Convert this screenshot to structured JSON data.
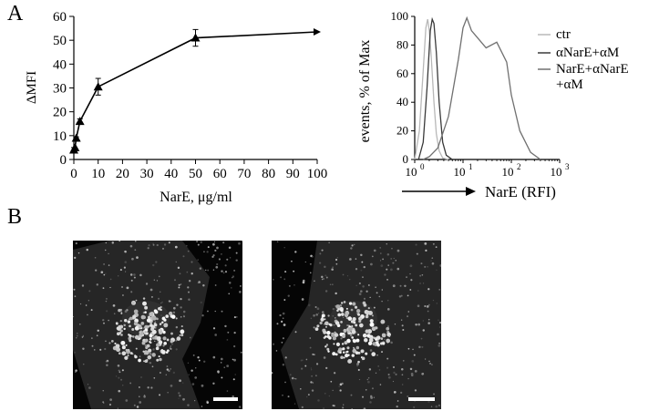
{
  "panels": {
    "a": "A",
    "b": "B"
  },
  "chart_data": [
    {
      "type": "line",
      "xlabel": "NarE, μg/ml",
      "ylabel": "ΔMFI",
      "xlim": [
        0,
        100
      ],
      "ylim": [
        0,
        60
      ],
      "x_ticks": [
        0,
        10,
        20,
        30,
        40,
        50,
        60,
        70,
        80,
        90,
        100
      ],
      "y_ticks": [
        0,
        10,
        20,
        30,
        40,
        50,
        60
      ],
      "grid": false,
      "series": [
        {
          "x": [
            0,
            0.5,
            1,
            2.5,
            10,
            50,
            100
          ],
          "y": [
            4,
            5,
            9,
            16,
            30.5,
            51,
            53.5
          ],
          "err": [
            1,
            0,
            0.5,
            1,
            3.5,
            3.5,
            0
          ],
          "marker": "triangle"
        }
      ]
    },
    {
      "type": "line",
      "xlabel": "NarE (RFI)",
      "ylabel": "events, % of Max",
      "x_scale": "log",
      "xlim": [
        1,
        1000
      ],
      "ylim": [
        0,
        100
      ],
      "x_ticks": [
        1,
        10,
        100,
        1000
      ],
      "x_tick_labels": [
        {
          "base": "10",
          "exp": "0"
        },
        {
          "base": "10",
          "exp": "1"
        },
        {
          "base": "10",
          "exp": "2"
        },
        {
          "base": "10",
          "exp": "3"
        }
      ],
      "y_ticks": [
        0,
        20,
        40,
        60,
        80,
        100
      ],
      "legend_position": "right",
      "series": [
        {
          "name": "ctr",
          "color": "#b8b8b8",
          "x": [
            1,
            1.25,
            1.5,
            1.7,
            1.85,
            2,
            2.2,
            2.5,
            2.8,
            3.2,
            3.8,
            5
          ],
          "y": [
            0,
            20,
            62,
            92,
            98,
            90,
            72,
            40,
            18,
            6,
            1,
            0
          ]
        },
        {
          "name": "αNarE+αM",
          "color": "#3a3a3a",
          "x": [
            1.2,
            1.5,
            1.8,
            2.1,
            2.3,
            2.5,
            2.8,
            3.2,
            3.8,
            4.5,
            6
          ],
          "y": [
            0,
            12,
            50,
            90,
            98,
            95,
            75,
            40,
            12,
            3,
            0
          ]
        },
        {
          "name": "NarE+αNarE\n+αM",
          "color": "#707070",
          "x": [
            1.5,
            2,
            3,
            5,
            8,
            10,
            12,
            15,
            20,
            30,
            50,
            80,
            100,
            150,
            250,
            400
          ],
          "y": [
            0,
            2,
            8,
            30,
            70,
            92,
            99,
            90,
            85,
            78,
            82,
            68,
            45,
            20,
            5,
            0
          ]
        }
      ]
    }
  ]
}
